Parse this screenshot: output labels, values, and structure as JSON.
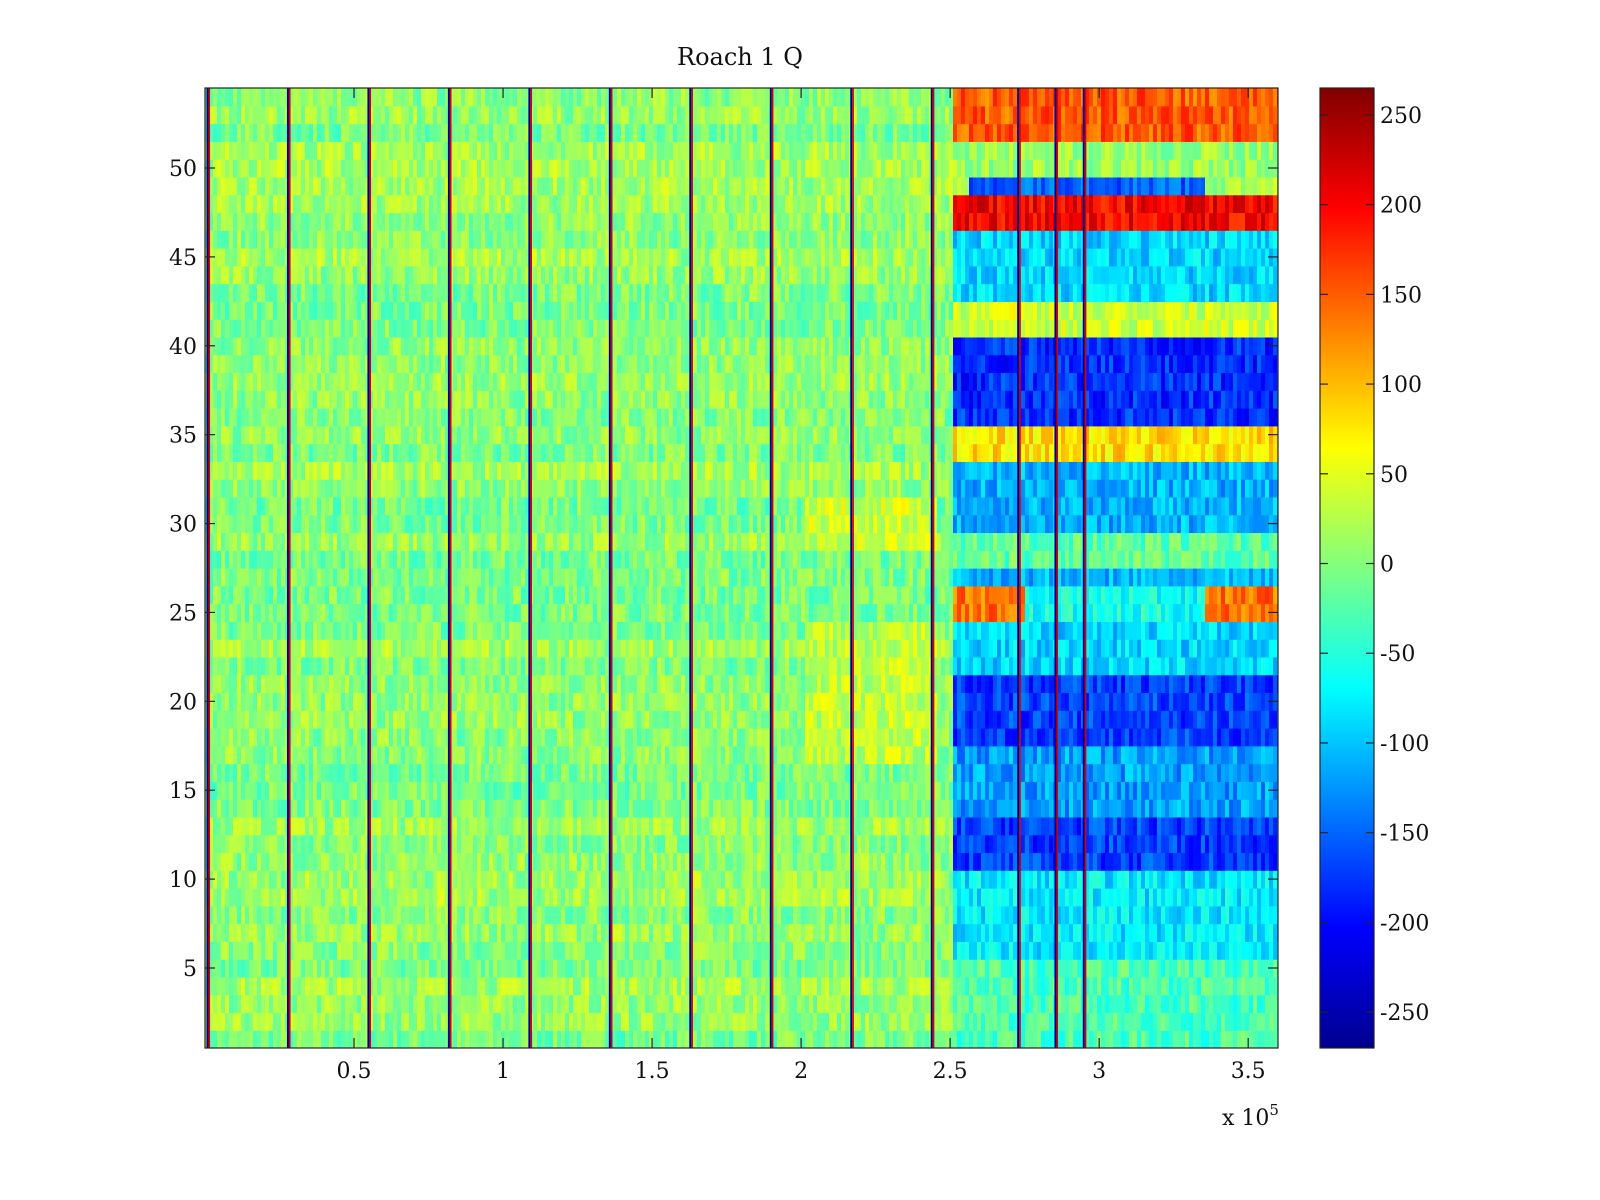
{
  "chart_data": {
    "type": "heatmap",
    "title": "Roach 1 Q",
    "xlabel": "",
    "ylabel": "",
    "x_range": [
      0,
      360000
    ],
    "y_range": [
      0.5,
      54.5
    ],
    "x_ticks": [
      {
        "value": 50000,
        "label": "0.5"
      },
      {
        "value": 100000,
        "label": "1"
      },
      {
        "value": 150000,
        "label": "1.5"
      },
      {
        "value": 200000,
        "label": "2"
      },
      {
        "value": 250000,
        "label": "2.5"
      },
      {
        "value": 300000,
        "label": "3"
      },
      {
        "value": 350000,
        "label": "3.5"
      }
    ],
    "x_exponent": {
      "base": "x 10",
      "power": "5"
    },
    "y_ticks": [
      {
        "value": 5,
        "label": "5"
      },
      {
        "value": 10,
        "label": "10"
      },
      {
        "value": 15,
        "label": "15"
      },
      {
        "value": 20,
        "label": "20"
      },
      {
        "value": 25,
        "label": "25"
      },
      {
        "value": 30,
        "label": "30"
      },
      {
        "value": 35,
        "label": "35"
      },
      {
        "value": 40,
        "label": "40"
      },
      {
        "value": 45,
        "label": "45"
      },
      {
        "value": 50,
        "label": "50"
      }
    ],
    "colorbar": {
      "colormap": "jet",
      "range": [
        -270,
        265
      ],
      "ticks": [
        {
          "value": 250,
          "label": "250"
        },
        {
          "value": 200,
          "label": "200"
        },
        {
          "value": 150,
          "label": "150"
        },
        {
          "value": 100,
          "label": "100"
        },
        {
          "value": 50,
          "label": "50"
        },
        {
          "value": 0,
          "label": "0"
        },
        {
          "value": -50,
          "label": "-50"
        },
        {
          "value": -100,
          "label": "-100"
        },
        {
          "value": -150,
          "label": "-150"
        },
        {
          "value": -200,
          "label": "-200"
        },
        {
          "value": -250,
          "label": "-250"
        }
      ]
    },
    "rows": 54,
    "baseline_value": 5,
    "vertical_stripes_x": [
      1000,
      28000,
      55000,
      82000,
      109000,
      136000,
      163000,
      190000,
      217000,
      244000,
      273000,
      285500,
      295000
    ],
    "regions": [
      {
        "x_start": 250000,
        "x_end": 360000,
        "rows": [
          54,
          53,
          52
        ],
        "value": 150
      },
      {
        "x_start": 250000,
        "x_end": 360000,
        "rows": [
          51,
          50
        ],
        "value": 10
      },
      {
        "x_start": 255000,
        "x_end": 335000,
        "rows": [
          49
        ],
        "value": -150
      },
      {
        "x_start": 250000,
        "x_end": 360000,
        "rows": [
          48,
          47
        ],
        "value": 200
      },
      {
        "x_start": 250000,
        "x_end": 360000,
        "rows": [
          46,
          45,
          44,
          43
        ],
        "value": -90
      },
      {
        "x_start": 250000,
        "x_end": 360000,
        "rows": [
          42,
          41
        ],
        "value": 40
      },
      {
        "x_start": 250000,
        "x_end": 360000,
        "rows": [
          40,
          39,
          38,
          37,
          36
        ],
        "value": -180
      },
      {
        "x_start": 250000,
        "x_end": 360000,
        "rows": [
          35,
          34
        ],
        "value": 80
      },
      {
        "x_start": 250000,
        "x_end": 360000,
        "rows": [
          33,
          32,
          31,
          30
        ],
        "value": -110
      },
      {
        "x_start": 250000,
        "x_end": 360000,
        "rows": [
          29,
          28
        ],
        "value": -20
      },
      {
        "x_start": 250000,
        "x_end": 360000,
        "rows": [
          27
        ],
        "value": -110
      },
      {
        "x_start": 250000,
        "x_end": 275000,
        "rows": [
          26,
          25
        ],
        "value": 140
      },
      {
        "x_start": 335000,
        "x_end": 360000,
        "rows": [
          26,
          25
        ],
        "value": 140
      },
      {
        "x_start": 275000,
        "x_end": 335000,
        "rows": [
          26,
          25
        ],
        "value": -60
      },
      {
        "x_start": 250000,
        "x_end": 360000,
        "rows": [
          24,
          23,
          22
        ],
        "value": -90
      },
      {
        "x_start": 250000,
        "x_end": 360000,
        "rows": [
          21,
          20,
          19,
          18
        ],
        "value": -170
      },
      {
        "x_start": 250000,
        "x_end": 360000,
        "rows": [
          17,
          16,
          15,
          14
        ],
        "value": -120
      },
      {
        "x_start": 250000,
        "x_end": 360000,
        "rows": [
          13,
          12,
          11
        ],
        "value": -170
      },
      {
        "x_start": 250000,
        "x_end": 360000,
        "rows": [
          10,
          9,
          8,
          7,
          6
        ],
        "value": -80
      },
      {
        "x_start": 250000,
        "x_end": 360000,
        "rows": [
          5,
          4,
          3,
          2,
          1
        ],
        "value": -30
      },
      {
        "x_start": 200000,
        "x_end": 245000,
        "rows": [
          31,
          30,
          29
        ],
        "value": 40
      },
      {
        "x_start": 200000,
        "x_end": 245000,
        "rows": [
          24,
          23,
          22,
          21,
          20,
          19,
          18,
          17
        ],
        "value": 30
      }
    ]
  }
}
